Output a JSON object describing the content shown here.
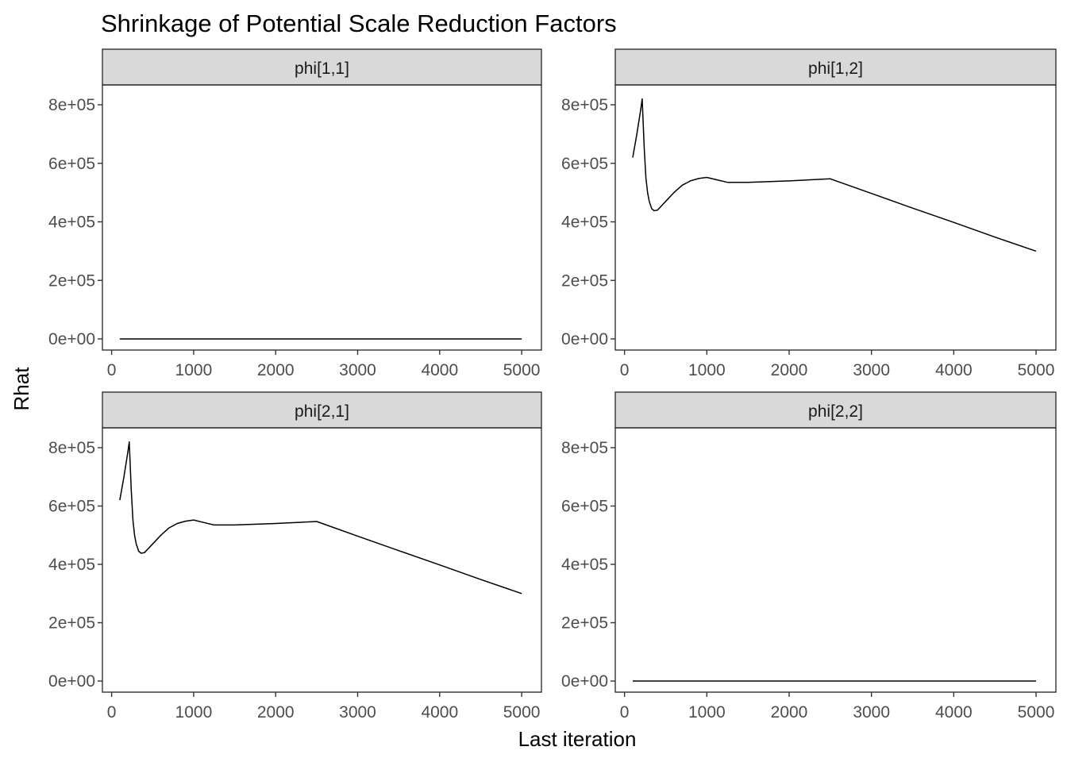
{
  "chart_data": {
    "type": "line",
    "title": "Shrinkage of Potential Scale Reduction Factors",
    "xlabel": "Last iteration",
    "ylabel": "Rhat",
    "xlim": [
      0,
      5000
    ],
    "ylim": [
      0,
      850000
    ],
    "x_ticks": [
      0,
      1000,
      2000,
      3000,
      4000,
      5000
    ],
    "x_tick_labels": [
      "0",
      "1000",
      "2000",
      "3000",
      "4000",
      "5000"
    ],
    "y_ticks": [
      0,
      200000,
      400000,
      600000,
      800000
    ],
    "y_tick_labels": [
      "0e+00",
      "2e+05",
      "4e+05",
      "6e+05",
      "8e+05"
    ],
    "grid": false,
    "facets": [
      {
        "label": "phi[1,1]",
        "x": [
          100,
          200,
          300,
          400,
          500,
          800,
          1000,
          1250,
          2500,
          5000
        ],
        "y": [
          1,
          1,
          1,
          1,
          1,
          1,
          1,
          1,
          1,
          1
        ]
      },
      {
        "label": "phi[1,2]",
        "x": [
          100,
          150,
          200,
          215,
          240,
          260,
          280,
          300,
          330,
          360,
          400,
          450,
          500,
          600,
          700,
          800,
          900,
          1000,
          1100,
          1250,
          1500,
          2000,
          2500,
          3000,
          3500,
          4000,
          4500,
          5000
        ],
        "y": [
          620000,
          700000,
          790000,
          820000,
          650000,
          550000,
          500000,
          470000,
          445000,
          438000,
          440000,
          455000,
          470000,
          500000,
          525000,
          540000,
          548000,
          552000,
          545000,
          535000,
          535000,
          540000,
          547000,
          497000,
          447000,
          398000,
          348000,
          300000
        ]
      },
      {
        "label": "phi[2,1]",
        "x": [
          100,
          150,
          200,
          215,
          240,
          260,
          280,
          300,
          330,
          360,
          400,
          450,
          500,
          600,
          700,
          800,
          900,
          1000,
          1100,
          1250,
          1500,
          2000,
          2500,
          3000,
          3500,
          4000,
          4500,
          5000
        ],
        "y": [
          620000,
          700000,
          790000,
          820000,
          650000,
          550000,
          500000,
          470000,
          445000,
          438000,
          440000,
          455000,
          470000,
          500000,
          525000,
          540000,
          548000,
          552000,
          545000,
          535000,
          535000,
          540000,
          547000,
          497000,
          447000,
          398000,
          348000,
          300000
        ]
      },
      {
        "label": "phi[2,2]",
        "x": [
          100,
          200,
          300,
          400,
          500,
          800,
          1000,
          1250,
          2500,
          5000
        ],
        "y": [
          1,
          1,
          1,
          1,
          1,
          1,
          1,
          1,
          1,
          1
        ]
      }
    ]
  }
}
